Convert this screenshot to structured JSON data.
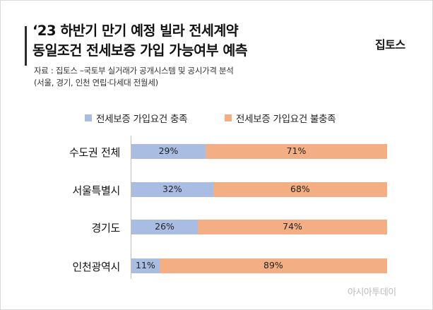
{
  "header": {
    "title": "‘23 하반기 만기 예정 빌라 전세계약\n동일조건 전세보증 가입 가능여부 예측",
    "brand": "집토스",
    "source": "자료 : 집토스 –국토부 실거래가 공개시스템 및 공시가격 분석\n(서울, 경기, 인천 연립·다세대 전월세)"
  },
  "watermark": "아시아투데이",
  "chart_data": {
    "type": "bar",
    "orientation": "horizontal",
    "stacked": true,
    "categories": [
      "수도권 전체",
      "서울특별시",
      "경기도",
      "인천광역시"
    ],
    "series": [
      {
        "name": "전세보증 가입요건 충족",
        "values": [
          29,
          32,
          26,
          11
        ],
        "color": "#a9bde3"
      },
      {
        "name": "전세보증 가입요건 불충족",
        "values": [
          71,
          68,
          74,
          89
        ],
        "color": "#f3ae84"
      }
    ],
    "value_suffix": "%",
    "xlim": [
      0,
      100
    ],
    "legend_position": "top",
    "grid": false
  }
}
